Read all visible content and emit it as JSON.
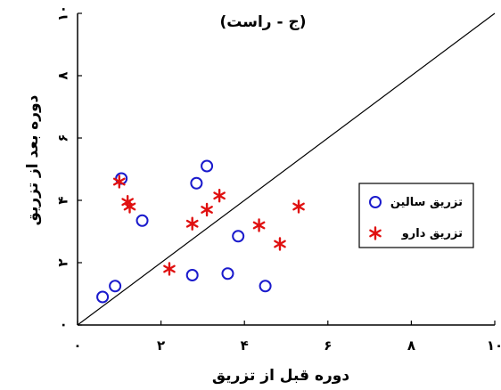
{
  "chart_data": {
    "type": "scatter",
    "title": "(ج - راست)",
    "xlabel": "دوره قبل از تزریق",
    "ylabel": "دوره بعد از تزریق",
    "xlim": [
      0,
      10
    ],
    "ylim": [
      0,
      10
    ],
    "xticks": [
      0,
      2,
      4,
      6,
      8,
      10
    ],
    "yticks": [
      0,
      2,
      4,
      6,
      8,
      10
    ],
    "xtick_labels": [
      "۰",
      "۲",
      "۴",
      "۶",
      "۸",
      "۱۰"
    ],
    "ytick_labels": [
      "۰",
      "۲",
      "۴",
      "۶",
      "۸",
      "۱۰"
    ],
    "grid": false,
    "legend_position": "right",
    "reference_line": "y = x",
    "series": [
      {
        "name": "تزریق سالین",
        "marker": "circle",
        "color": "#1a1acc",
        "points": [
          {
            "x": 0.6,
            "y": 0.9
          },
          {
            "x": 0.9,
            "y": 1.25
          },
          {
            "x": 1.05,
            "y": 4.7
          },
          {
            "x": 1.55,
            "y": 3.35
          },
          {
            "x": 2.75,
            "y": 1.6
          },
          {
            "x": 2.85,
            "y": 4.55
          },
          {
            "x": 3.1,
            "y": 5.1
          },
          {
            "x": 3.6,
            "y": 1.65
          },
          {
            "x": 3.85,
            "y": 2.85
          },
          {
            "x": 4.5,
            "y": 1.25
          }
        ]
      },
      {
        "name": "تزریق دارو",
        "marker": "asterisk",
        "color": "#e01010",
        "points": [
          {
            "x": 1.0,
            "y": 4.6
          },
          {
            "x": 1.2,
            "y": 3.95
          },
          {
            "x": 1.25,
            "y": 3.8
          },
          {
            "x": 2.2,
            "y": 1.8
          },
          {
            "x": 2.75,
            "y": 3.25
          },
          {
            "x": 3.1,
            "y": 3.7
          },
          {
            "x": 3.4,
            "y": 4.15
          },
          {
            "x": 4.35,
            "y": 3.2
          },
          {
            "x": 4.85,
            "y": 2.6
          },
          {
            "x": 5.3,
            "y": 3.8
          }
        ]
      }
    ]
  }
}
